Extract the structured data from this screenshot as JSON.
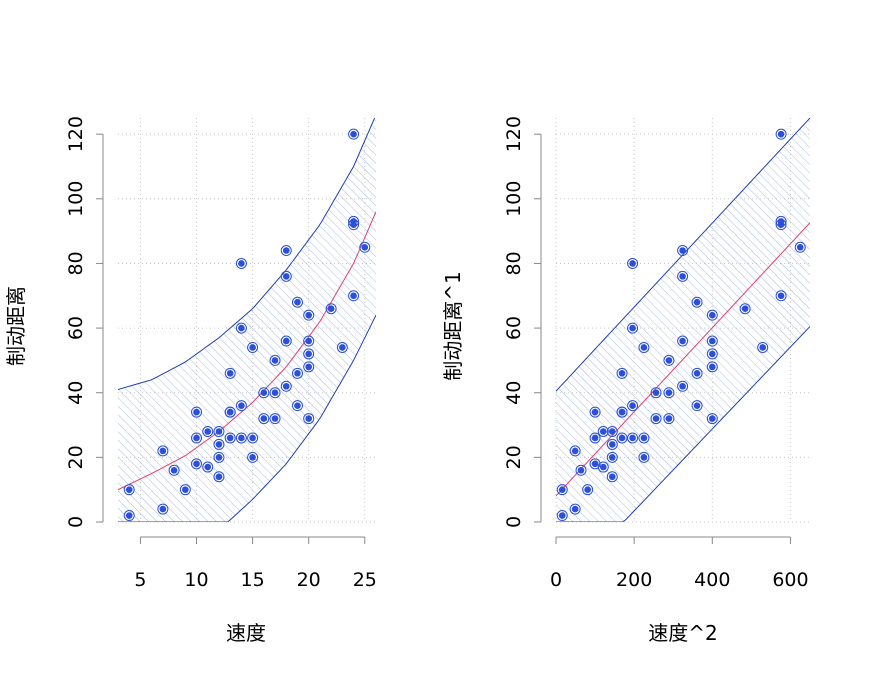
{
  "colors": {
    "points": "#2b4fd8",
    "point_ring": "#2b4fd8",
    "fit_line": "#e0406a",
    "band_line": "#1f3fb0",
    "band_hatch": "#a9bde6",
    "grid": "#c8c8c8",
    "axis": "#888888"
  },
  "chart_data": [
    {
      "type": "scatter",
      "xlabel": "速度",
      "ylabel": "制动距离",
      "xlim": [
        3,
        26
      ],
      "ylim": [
        0,
        125
      ],
      "xticks": [
        5,
        10,
        15,
        20,
        25
      ],
      "yticks": [
        0,
        20,
        40,
        60,
        80,
        100,
        120
      ],
      "grid": true,
      "points": [
        [
          4,
          2
        ],
        [
          4,
          10
        ],
        [
          7,
          4
        ],
        [
          7,
          22
        ],
        [
          8,
          16
        ],
        [
          9,
          10
        ],
        [
          10,
          18
        ],
        [
          10,
          26
        ],
        [
          10,
          34
        ],
        [
          11,
          17
        ],
        [
          11,
          28
        ],
        [
          12,
          14
        ],
        [
          12,
          20
        ],
        [
          12,
          24
        ],
        [
          12,
          28
        ],
        [
          13,
          26
        ],
        [
          13,
          34
        ],
        [
          13,
          34
        ],
        [
          13,
          46
        ],
        [
          14,
          26
        ],
        [
          14,
          36
        ],
        [
          14,
          60
        ],
        [
          14,
          80
        ],
        [
          15,
          20
        ],
        [
          15,
          26
        ],
        [
          15,
          54
        ],
        [
          16,
          32
        ],
        [
          16,
          40
        ],
        [
          17,
          32
        ],
        [
          17,
          40
        ],
        [
          17,
          50
        ],
        [
          18,
          42
        ],
        [
          18,
          56
        ],
        [
          18,
          76
        ],
        [
          18,
          84
        ],
        [
          19,
          36
        ],
        [
          19,
          46
        ],
        [
          19,
          68
        ],
        [
          20,
          32
        ],
        [
          20,
          48
        ],
        [
          20,
          52
        ],
        [
          20,
          56
        ],
        [
          20,
          64
        ],
        [
          22,
          66
        ],
        [
          23,
          54
        ],
        [
          24,
          70
        ],
        [
          24,
          92
        ],
        [
          24,
          93
        ],
        [
          24,
          120
        ],
        [
          25,
          85
        ]
      ],
      "fit": {
        "x": [
          3,
          6,
          9,
          12,
          15,
          18,
          21,
          24,
          26
        ],
        "y": [
          10,
          15,
          20.5,
          28,
          37,
          48,
          62,
          80,
          96
        ]
      },
      "band_upper": {
        "x": [
          3,
          6,
          9,
          12,
          15,
          18,
          21,
          24,
          26
        ],
        "y": [
          41,
          44,
          49.5,
          57,
          66,
          78,
          92,
          110,
          126
        ]
      },
      "band_lower": {
        "x": [
          3,
          12.8,
          15,
          18,
          21,
          24,
          26
        ],
        "y": [
          0,
          0,
          7,
          18,
          32,
          50,
          64
        ]
      }
    },
    {
      "type": "scatter",
      "xlabel": "速度^2",
      "ylabel": "制动距离^1",
      "xlim": [
        0,
        650
      ],
      "ylim": [
        0,
        125
      ],
      "xticks": [
        0,
        200,
        400,
        600
      ],
      "yticks": [
        0,
        20,
        40,
        60,
        80,
        100,
        120
      ],
      "grid": true,
      "points": [
        [
          16,
          2
        ],
        [
          16,
          10
        ],
        [
          49,
          4
        ],
        [
          49,
          22
        ],
        [
          64,
          16
        ],
        [
          81,
          10
        ],
        [
          100,
          18
        ],
        [
          100,
          26
        ],
        [
          100,
          34
        ],
        [
          121,
          17
        ],
        [
          121,
          28
        ],
        [
          144,
          14
        ],
        [
          144,
          20
        ],
        [
          144,
          24
        ],
        [
          144,
          28
        ],
        [
          169,
          26
        ],
        [
          169,
          34
        ],
        [
          169,
          34
        ],
        [
          169,
          46
        ],
        [
          196,
          26
        ],
        [
          196,
          36
        ],
        [
          196,
          60
        ],
        [
          196,
          80
        ],
        [
          225,
          20
        ],
        [
          225,
          26
        ],
        [
          225,
          54
        ],
        [
          256,
          32
        ],
        [
          256,
          40
        ],
        [
          289,
          32
        ],
        [
          289,
          40
        ],
        [
          289,
          50
        ],
        [
          324,
          42
        ],
        [
          324,
          56
        ],
        [
          324,
          76
        ],
        [
          324,
          84
        ],
        [
          361,
          36
        ],
        [
          361,
          46
        ],
        [
          361,
          68
        ],
        [
          400,
          32
        ],
        [
          400,
          48
        ],
        [
          400,
          52
        ],
        [
          400,
          56
        ],
        [
          400,
          64
        ],
        [
          484,
          66
        ],
        [
          529,
          54
        ],
        [
          576,
          70
        ],
        [
          576,
          92
        ],
        [
          576,
          93
        ],
        [
          576,
          120
        ],
        [
          625,
          85
        ]
      ],
      "fit": {
        "x": [
          0,
          650
        ],
        "y": [
          8.1,
          92.6
        ]
      },
      "band_upper": {
        "x": [
          0,
          650
        ],
        "y": [
          40.5,
          125
        ]
      },
      "band_lower": {
        "x": [
          0,
          173,
          650
        ],
        "y": [
          0,
          0,
          60.5
        ]
      }
    }
  ]
}
